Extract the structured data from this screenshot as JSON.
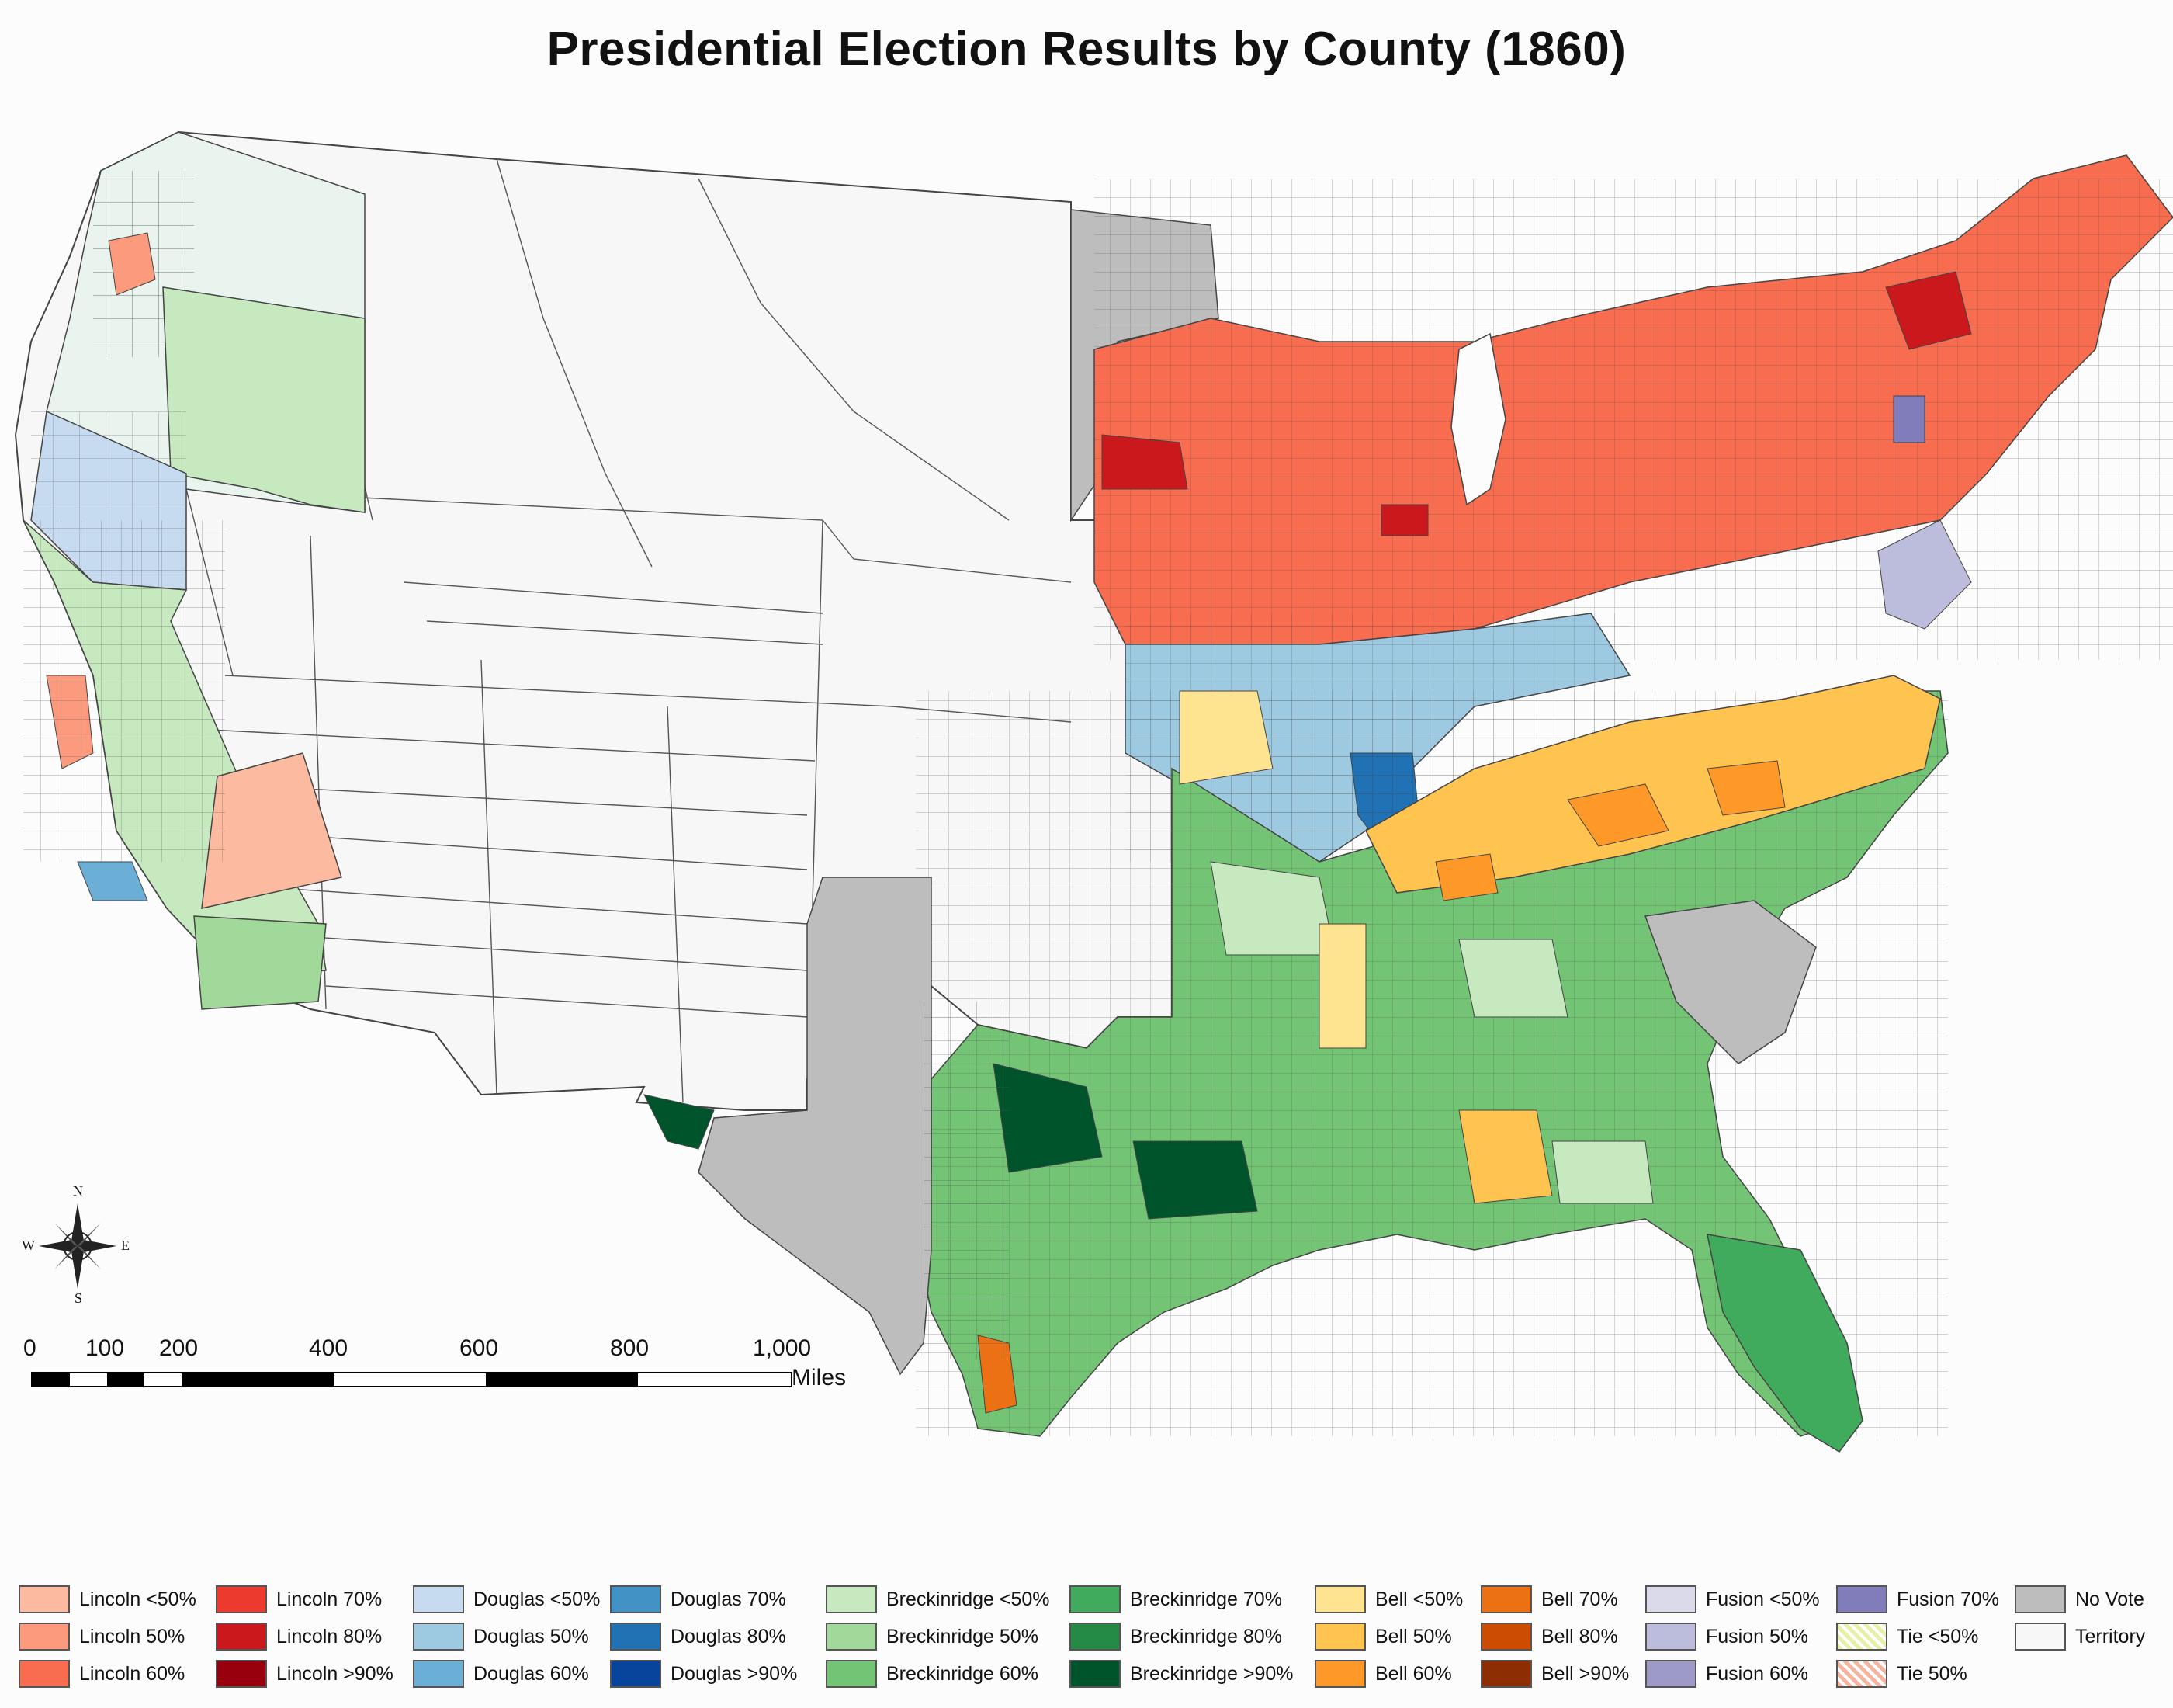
{
  "title": "Presidential Election Results by County (1860)",
  "compass": {
    "n": "N",
    "s": "S",
    "e": "E",
    "w": "W"
  },
  "scale": {
    "ticks": [
      "0",
      "100",
      "200",
      "400",
      "600",
      "800",
      "1,000"
    ],
    "unit": "Miles"
  },
  "legend": {
    "columns": [
      [
        {
          "label": "Lincoln <50%",
          "color": "#fcbba1"
        },
        {
          "label": "Lincoln 50%",
          "color": "#fb9a7c"
        },
        {
          "label": "Lincoln 60%",
          "color": "#f86d50"
        }
      ],
      [
        {
          "label": "Lincoln 70%",
          "color": "#ec3a2e"
        },
        {
          "label": "Lincoln 80%",
          "color": "#cb181d"
        },
        {
          "label": "Lincoln >90%",
          "color": "#99000d"
        }
      ],
      [
        {
          "label": "Douglas <50%",
          "color": "#c6dbef"
        },
        {
          "label": "Douglas 50%",
          "color": "#9ecae1"
        },
        {
          "label": "Douglas 60%",
          "color": "#6baed6"
        }
      ],
      [
        {
          "label": "Douglas 70%",
          "color": "#4292c6"
        },
        {
          "label": "Douglas 80%",
          "color": "#2171b5"
        },
        {
          "label": "Douglas >90%",
          "color": "#08449c"
        }
      ],
      [
        {
          "label": "Breckinridge <50%",
          "color": "#c7e9c0"
        },
        {
          "label": "Breckinridge 50%",
          "color": "#a1d99b"
        },
        {
          "label": "Breckinridge 60%",
          "color": "#74c476"
        }
      ],
      [
        {
          "label": "Breckinridge 70%",
          "color": "#41ab5d"
        },
        {
          "label": "Breckinridge 80%",
          "color": "#238b45"
        },
        {
          "label": "Breckinridge >90%",
          "color": "#00542c"
        }
      ],
      [
        {
          "label": "Bell <50%",
          "color": "#fee391"
        },
        {
          "label": "Bell 50%",
          "color": "#fec44f"
        },
        {
          "label": "Bell 60%",
          "color": "#fe9929"
        }
      ],
      [
        {
          "label": "Bell 70%",
          "color": "#ec7014"
        },
        {
          "label": "Bell 80%",
          "color": "#cc4c02"
        },
        {
          "label": "Bell >90%",
          "color": "#8c2d04"
        }
      ],
      [
        {
          "label": "Fusion <50%",
          "color": "#dadaeb"
        },
        {
          "label": "Fusion 50%",
          "color": "#bcbddc"
        },
        {
          "label": "Fusion 60%",
          "color": "#9e9ac8"
        }
      ],
      [
        {
          "label": "Fusion 70%",
          "color": "#807dba"
        },
        {
          "label": "Tie <50%",
          "color": "#e8f0a8"
        },
        {
          "label": "Tie 50%",
          "color": "#f5b4a0"
        }
      ],
      [
        {
          "label": "No Vote",
          "color": "#bdbdbd"
        },
        {
          "label": "Territory",
          "color": "#f7f7f7"
        }
      ]
    ]
  }
}
